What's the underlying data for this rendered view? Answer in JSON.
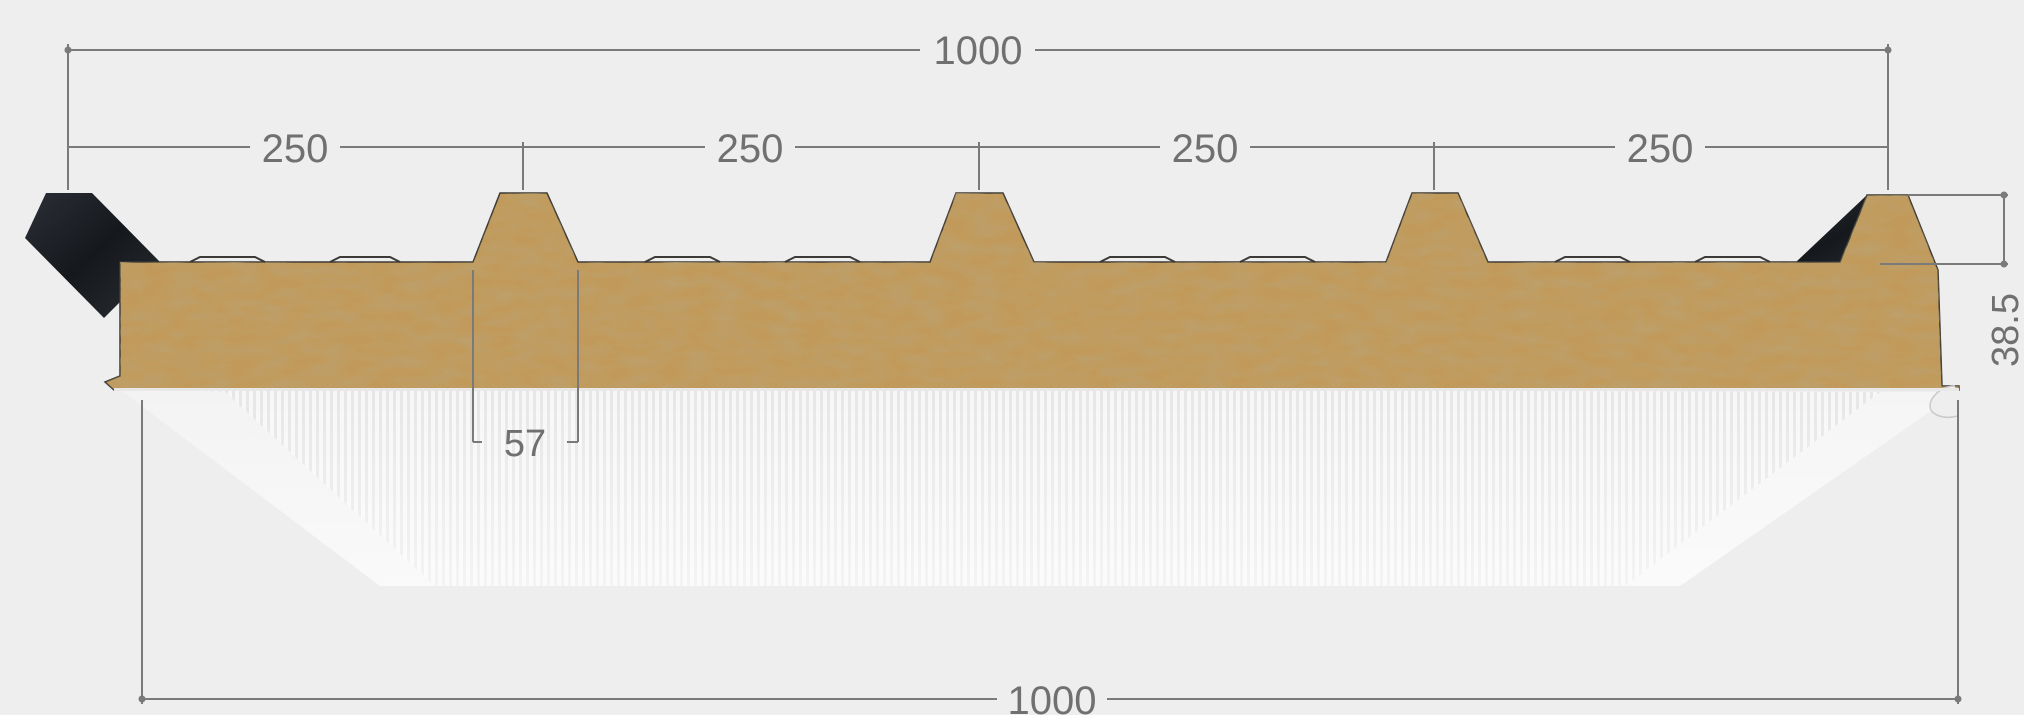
{
  "diagram": {
    "dimensions": {
      "top_total": "1000",
      "rib_spacing": [
        "250",
        "250",
        "250",
        "250"
      ],
      "rib_width": "57",
      "rib_height": "38.5",
      "bottom_total": "1000"
    },
    "colors": {
      "background": "#eeeeee",
      "dimension_line": "#7a7a7a",
      "dimension_text": "#707070",
      "core_wool": "#c19a5b",
      "top_steel": "#1c1f24",
      "bottom_face": "#f6f6f6"
    }
  }
}
